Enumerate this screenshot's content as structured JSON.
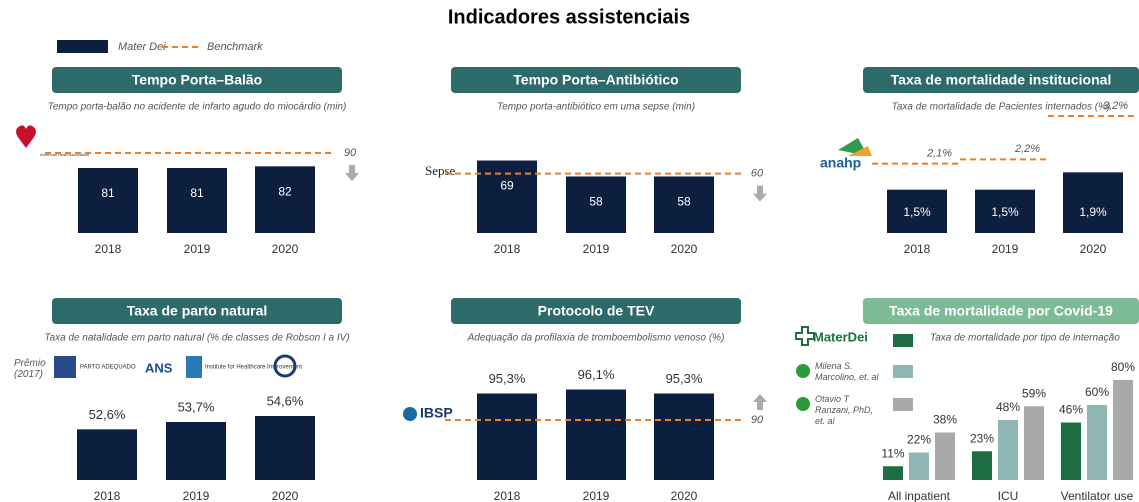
{
  "title": "Indicadores assistenciais",
  "legend": {
    "bar": "Mater Dei",
    "line": "Benchmark"
  },
  "chart_data": [
    {
      "type": "bar",
      "title": "Tempo Porta–Balão",
      "subtitle": "Tempo porta-balão no acidente de infarto agudo do miocárdio (min)",
      "logo": "American Heart Association",
      "categories": [
        "2018",
        "2019",
        "2020"
      ],
      "values": [
        81,
        81,
        82
      ],
      "color": "#0d1f3f",
      "benchmark": 90,
      "benchmark_color": "#f07d1f",
      "better": "down",
      "ylim": [
        42,
        102
      ]
    },
    {
      "type": "bar",
      "title": "Tempo Porta–Antibiótico",
      "subtitle": "Tempo porta-antibiótico em uma sepse (min)",
      "logo": "Sepse",
      "categories": [
        "2018",
        "2019",
        "2020"
      ],
      "values": [
        69,
        58,
        58
      ],
      "color": "#0d1f3f",
      "benchmark": 60,
      "benchmark_color": "#f07d1f",
      "better": "down",
      "ylim": [
        19,
        88
      ]
    },
    {
      "type": "bar",
      "title": "Taxa de mortalidade institucional",
      "subtitle": "Taxa de mortalidade de Pacientes internados (%)",
      "logo": "anahp",
      "categories": [
        "2018",
        "2019",
        "2020"
      ],
      "values": [
        1.5,
        1.5,
        1.9
      ],
      "value_labels": [
        "1,5%",
        "1,5%",
        "1,9%"
      ],
      "color": "#0d1f3f",
      "benchmark": [
        2.1,
        2.2,
        3.2
      ],
      "benchmark_labels": [
        "2,1%",
        "2,2%",
        "3,2%"
      ],
      "benchmark_color": "#f07d1f",
      "ylim": [
        0.5,
        3.5
      ]
    },
    {
      "type": "bar",
      "title": "Taxa de parto natural",
      "subtitle": "Taxa de natalidade em parto natural (% de classes de Robson I a IV)",
      "award": "Prêmio (2017)",
      "logos": [
        "PARTO ADEQUADO",
        "ANS",
        "Institute for Healthcare Improvement"
      ],
      "categories": [
        "2018",
        "2019",
        "2020"
      ],
      "values": [
        52.6,
        53.7,
        54.6
      ],
      "value_labels": [
        "52,6%",
        "53,7%",
        "54,6%"
      ],
      "color": "#0d1f3f",
      "ylim": [
        45,
        60
      ]
    },
    {
      "type": "bar",
      "title": "Protocolo de TEV",
      "subtitle": "Adequação da profilaxia de tromboembolismo venoso (%)",
      "logo": "IBSP",
      "categories": [
        "2018",
        "2019",
        "2020"
      ],
      "values": [
        95.3,
        96.1,
        95.3
      ],
      "value_labels": [
        "95,3%",
        "96,1%",
        "95,3%"
      ],
      "color": "#0d1f3f",
      "benchmark": 90,
      "benchmark_color": "#f07d1f",
      "better": "up",
      "ylim": [
        78,
        98
      ]
    },
    {
      "type": "grouped_bar",
      "title": "Taxa de mortalidade por Covid-19",
      "subtitle": "Taxa de mortalidade por tipo de internação",
      "categories": [
        "All inpatient",
        "ICU",
        "Ventilator use"
      ],
      "series": [
        {
          "name": "MaterDei",
          "color": "#1f6e43",
          "values": [
            11,
            23,
            46
          ],
          "value_labels": [
            "11%",
            "23%",
            "46%"
          ]
        },
        {
          "name": "Milena S. Marcolino, et. al",
          "color": "#8fb5b4",
          "values": [
            22,
            48,
            60
          ],
          "value_labels": [
            "22%",
            "48%",
            "60%"
          ]
        },
        {
          "name": "Otavio T Ranzani, PhD, et. al",
          "color": "#a9a9a9",
          "values": [
            38,
            59,
            80
          ],
          "value_labels": [
            "38%",
            "59%",
            "80%"
          ]
        }
      ],
      "ylim": [
        0,
        80
      ]
    }
  ]
}
